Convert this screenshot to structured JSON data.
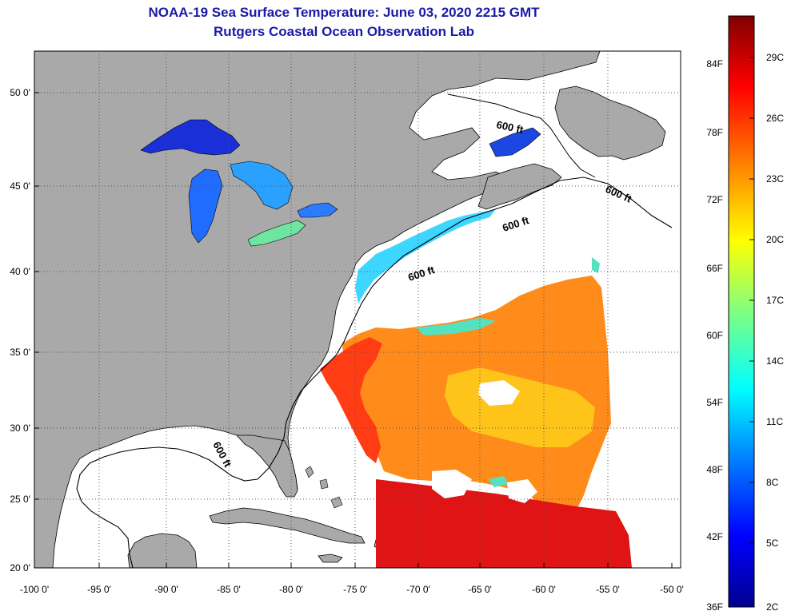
{
  "header": {
    "title": "NOAA-19 Sea Surface Temperature:  June 03, 2020 2215 GMT",
    "subtitle": "Rutgers Coastal Ocean Observation Lab"
  },
  "map": {
    "lat_labels": [
      "50 0'",
      "45 0'",
      "40 0'",
      "35 0'",
      "30 0'",
      "25 0'",
      "20 0'"
    ],
    "lon_labels": [
      "-100 0'",
      "-95 0'",
      "-90 0'",
      "-85 0'",
      "-80 0'",
      "-75 0'",
      "-70 0'",
      "-65 0'",
      "-60 0'",
      "-55 0'",
      "-50 0'"
    ],
    "contour_labels": [
      "600 ft",
      "600 ft",
      "600 ft",
      "600 ft",
      "600 ft"
    ],
    "colors": {
      "land": "#a9a9a9",
      "no_data": "#ffffff",
      "grid": "#555555"
    }
  },
  "colorbar": {
    "fahrenheit_labels": [
      "84F",
      "78F",
      "72F",
      "66F",
      "60F",
      "54F",
      "48F",
      "42F",
      "36F"
    ],
    "celsius_labels": [
      "29C",
      "26C",
      "23C",
      "20C",
      "17C",
      "14C",
      "11C",
      "8C",
      "5C",
      "2C"
    ],
    "gradient_stops": [
      "#00008f",
      "#0000ff",
      "#0080ff",
      "#00ffff",
      "#80ff80",
      "#ffff00",
      "#ff8000",
      "#ff0000",
      "#800000"
    ]
  }
}
